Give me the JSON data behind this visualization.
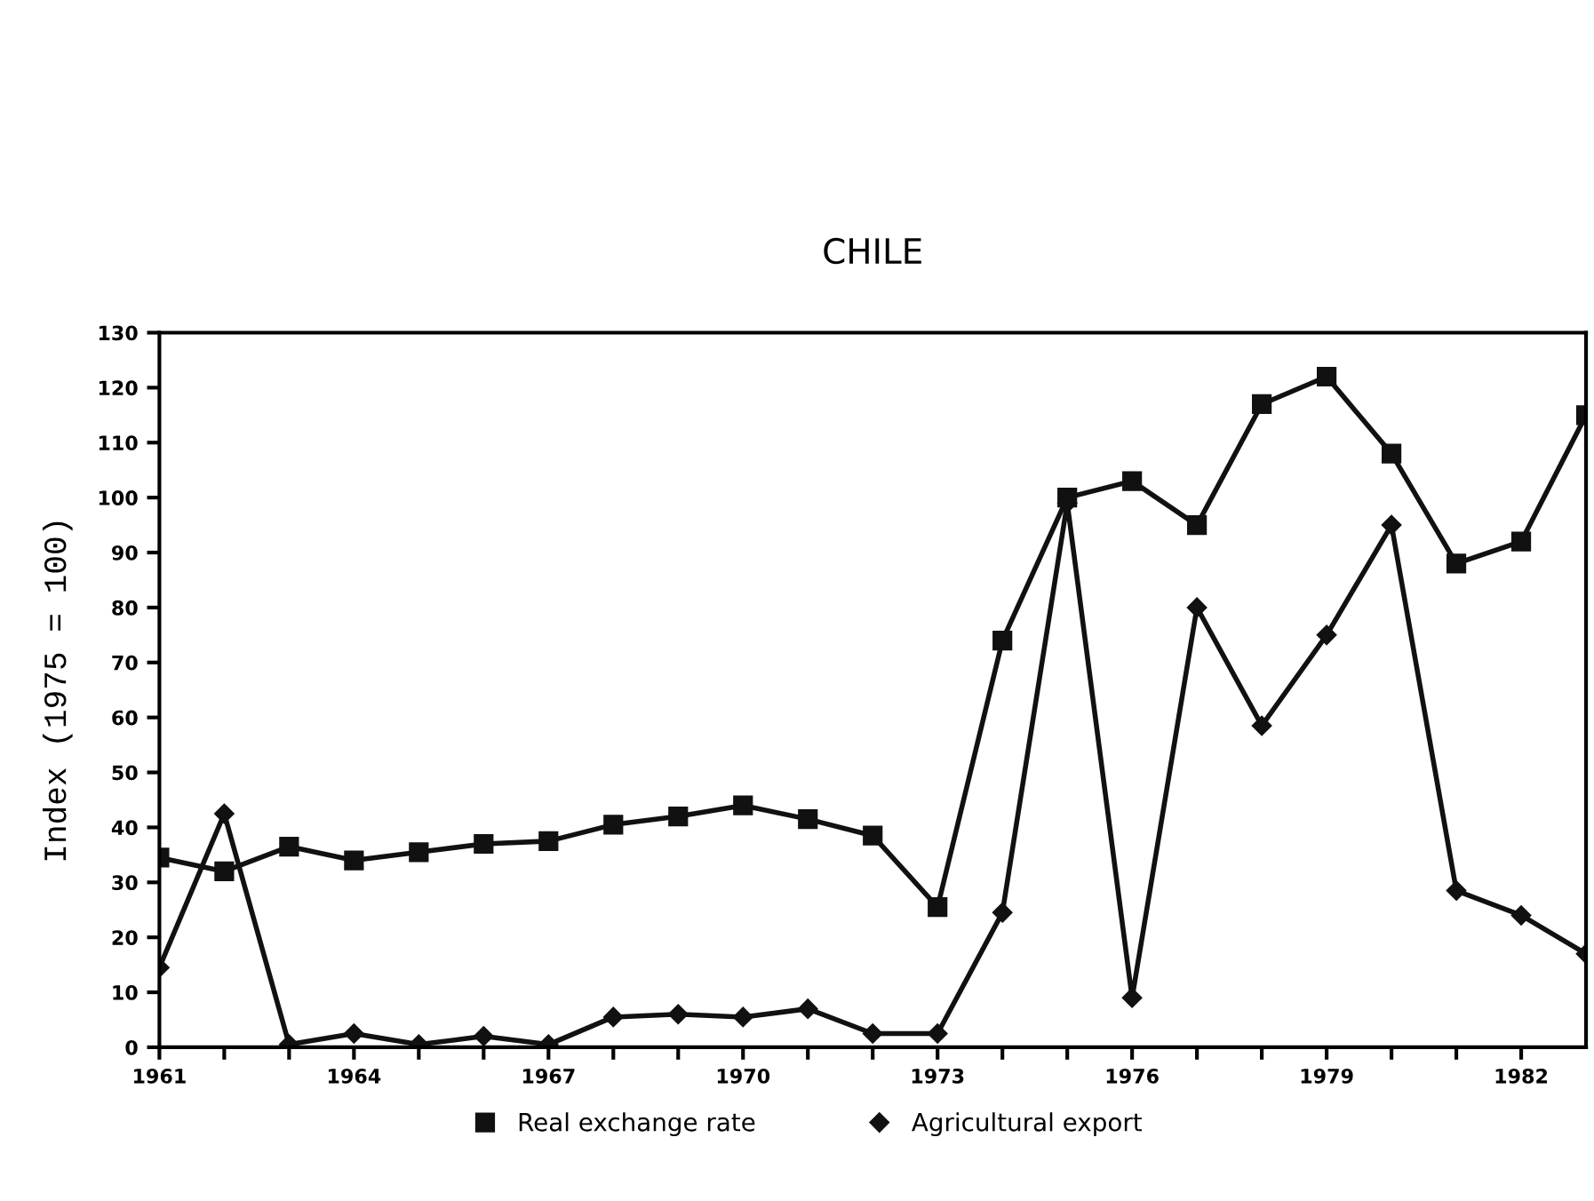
{
  "chart_data": {
    "type": "line",
    "title": "CHILE",
    "ylabel": "Index (1975 = 100)",
    "x": [
      1961,
      1962,
      1963,
      1964,
      1965,
      1966,
      1967,
      1968,
      1969,
      1970,
      1971,
      1972,
      1973,
      1974,
      1975,
      1976,
      1977,
      1978,
      1979,
      1980,
      1981,
      1982,
      1983
    ],
    "series": [
      {
        "name": "Real exchange rate",
        "color": "#111111",
        "marker": "square",
        "values": [
          34.5,
          32,
          36.5,
          34,
          35.5,
          37,
          37.5,
          40.5,
          42,
          44,
          41.5,
          38.5,
          25.5,
          74,
          100,
          103,
          95,
          117,
          122,
          108,
          88,
          92,
          115
        ]
      },
      {
        "name": "Agricultural export",
        "color": "#111111",
        "marker": "diamond",
        "values": [
          14.5,
          42.5,
          0.5,
          2.5,
          0.5,
          2,
          0.5,
          5.5,
          6,
          5.5,
          7,
          2.5,
          2.5,
          24.5,
          99,
          9,
          80,
          58.5,
          75,
          95,
          28.5,
          24,
          17
        ]
      }
    ],
    "xlim": [
      1961,
      1983
    ],
    "xticks": [
      1961,
      {
        "value": 1962,
        "label": null
      },
      {
        "value": 1963,
        "label": null
      },
      1964,
      {
        "value": 1965,
        "label": null
      },
      {
        "value": 1966,
        "label": null
      },
      1967,
      {
        "value": 1968,
        "label": null
      },
      {
        "value": 1969,
        "label": null
      },
      1970,
      {
        "value": 1971,
        "label": null
      },
      {
        "value": 1972,
        "label": null
      },
      1973,
      {
        "value": 1974,
        "label": null
      },
      {
        "value": 1975,
        "label": null
      },
      1976,
      {
        "value": 1977,
        "label": null
      },
      {
        "value": 1978,
        "label": null
      },
      1979,
      {
        "value": 1980,
        "label": null
      },
      {
        "value": 1981,
        "label": null
      },
      1982
    ],
    "ylim": [
      0,
      130
    ],
    "yticks": [
      0,
      10,
      20,
      30,
      40,
      50,
      60,
      70,
      80,
      90,
      100,
      110,
      120,
      130
    ],
    "grid": false,
    "legend": "bottom",
    "line_style": "solid"
  }
}
